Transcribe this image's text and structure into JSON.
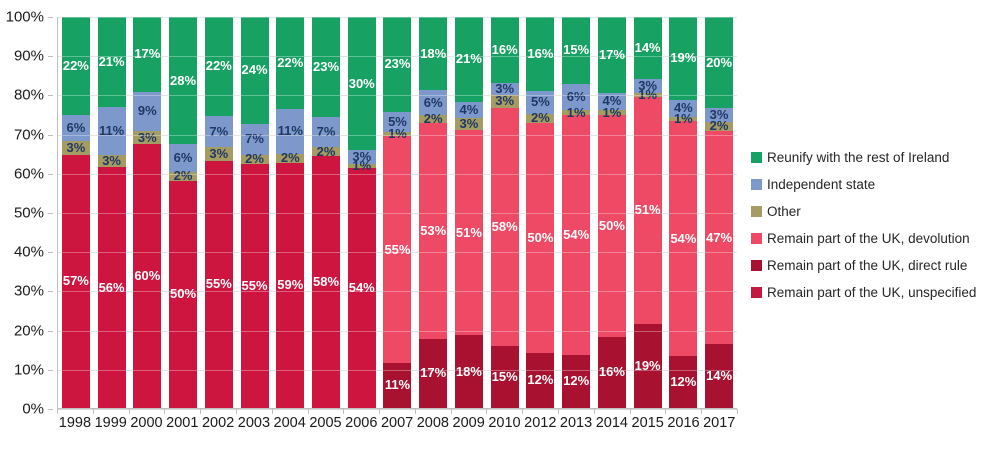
{
  "chart_data": {
    "type": "bar",
    "variant": "stacked-100-normalized",
    "title": "",
    "xlabel": "",
    "ylabel": "",
    "grid": true,
    "x": [
      "1998",
      "1999",
      "2000",
      "2001",
      "2002",
      "2003",
      "2004",
      "2005",
      "2006",
      "2007",
      "2008",
      "2009",
      "2010",
      "2012",
      "2013",
      "2014",
      "2015",
      "2016",
      "2017"
    ],
    "y_axis": {
      "min": 0,
      "max": 100,
      "step": 10,
      "tick_labels": [
        "0%",
        "10%",
        "20%",
        "30%",
        "40%",
        "50%",
        "60%",
        "70%",
        "80%",
        "90%",
        "100%"
      ]
    },
    "data_label_suffix": "%",
    "series": [
      {
        "name": "Remain part of the UK, unspecified",
        "color": "#CD1540",
        "label_color": "#ffffff",
        "values": [
          57,
          56,
          60,
          50,
          55,
          55,
          59,
          58,
          54,
          null,
          null,
          null,
          null,
          null,
          null,
          null,
          null,
          null,
          null
        ]
      },
      {
        "name": "Remain part of the UK, direct rule",
        "color": "#A8112F",
        "label_color": "#ffffff",
        "values": [
          null,
          null,
          null,
          null,
          null,
          null,
          null,
          null,
          null,
          11,
          17,
          18,
          15,
          12,
          12,
          16,
          19,
          12,
          14
        ]
      },
      {
        "name": "Remain part of the UK, devolution",
        "color": "#EE4A66",
        "label_color": "#ffffff",
        "values": [
          null,
          null,
          null,
          null,
          null,
          null,
          null,
          null,
          null,
          55,
          53,
          51,
          58,
          50,
          54,
          50,
          51,
          54,
          47
        ]
      },
      {
        "name": "Other",
        "color": "#A59C64",
        "label_color": "#1F3864",
        "values": [
          3,
          3,
          3,
          2,
          3,
          2,
          2,
          2,
          1,
          1,
          2,
          3,
          3,
          2,
          1,
          1,
          1,
          1,
          2
        ]
      },
      {
        "name": "Independent state",
        "color": "#7D98CB",
        "label_color": "#1F3864",
        "values": [
          6,
          11,
          9,
          6,
          7,
          7,
          11,
          7,
          3,
          5,
          6,
          4,
          3,
          5,
          6,
          4,
          3,
          4,
          3
        ]
      },
      {
        "name": "Reunify with the rest of Ireland",
        "color": "#17A263",
        "label_color": "#ffffff",
        "values": [
          22,
          21,
          17,
          28,
          22,
          24,
          22,
          23,
          30,
          23,
          18,
          21,
          16,
          16,
          15,
          17,
          14,
          19,
          20
        ]
      }
    ],
    "legend": {
      "position": "right",
      "items": [
        {
          "label": "Reunify with the rest of Ireland",
          "color": "#17A263"
        },
        {
          "label": "Independent state",
          "color": "#7D98CB"
        },
        {
          "label": "Other",
          "color": "#A59C64"
        },
        {
          "label": "Remain part of the UK, devolution",
          "color": "#EE4A66"
        },
        {
          "label": "Remain part of the UK, direct rule",
          "color": "#A8112F"
        },
        {
          "label": "Remain part of the UK, unspecified",
          "color": "#C21A40"
        }
      ]
    },
    "axis_color": "#BFBFBF",
    "gridline_color": "#D9D9D9",
    "tick_text_color": "#1A1A1A"
  }
}
